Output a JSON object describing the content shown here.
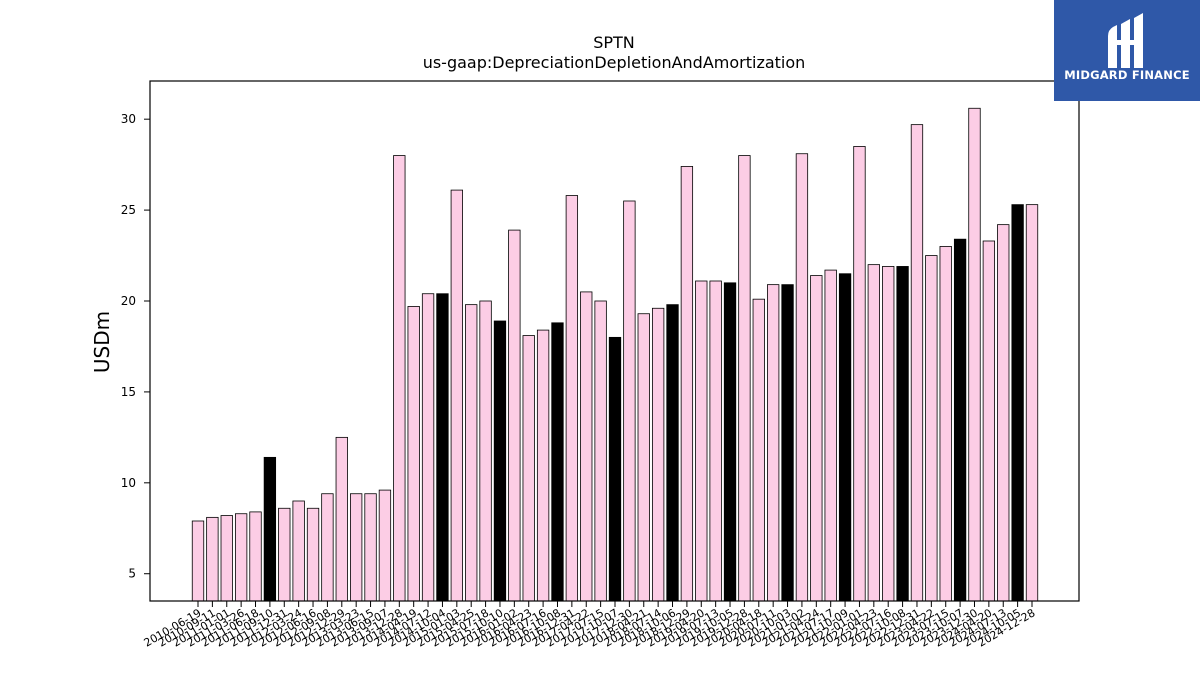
{
  "logo": {
    "text": "MIDGARD FINANCE",
    "background": "#2f58a8"
  },
  "chart_data": {
    "type": "bar",
    "title": "SPTN",
    "subtitle": "us-gaap:DepreciationDepletionAndAmortization",
    "xlabel": "",
    "ylabel": "USDm",
    "ylim": [
      3.5,
      32.1
    ],
    "yticks": [
      5,
      10,
      15,
      20,
      25,
      30
    ],
    "grid": false,
    "colors": {
      "quarter": "#fccde5",
      "annual": "#000000",
      "edge": "#000000"
    },
    "categories": [
      "2010-06-19",
      "2010-09-11",
      "2011-01-01",
      "2011-03-26",
      "2011-06-18",
      "2011-09-10",
      "2011-12-31",
      "2012-03-24",
      "2012-06-16",
      "2012-09-08",
      "2012-12-29",
      "2013-03-23",
      "2013-06-15",
      "2013-09-07",
      "2013-12-28",
      "2014-04-19",
      "2014-07-12",
      "2014-10-04",
      "2015-01-03",
      "2015-04-25",
      "2015-07-18",
      "2015-10-10",
      "2016-01-02",
      "2016-04-23",
      "2016-07-16",
      "2016-10-08",
      "2016-12-31",
      "2017-04-22",
      "2017-07-15",
      "2017-10-07",
      "2017-12-30",
      "2018-04-21",
      "2018-07-14",
      "2018-10-06",
      "2018-12-29",
      "2019-04-20",
      "2019-07-13",
      "2019-10-05",
      "2019-12-28",
      "2020-04-18",
      "2020-07-11",
      "2020-10-03",
      "2021-01-02",
      "2021-04-24",
      "2021-07-17",
      "2021-10-09",
      "2022-01-01",
      "2022-04-23",
      "2022-07-16",
      "2022-10-08",
      "2022-12-31",
      "2023-04-22",
      "2023-07-15",
      "2023-10-07",
      "2023-12-30",
      "2024-04-20",
      "2024-07-13",
      "2024-10-05",
      "2024-12-28"
    ],
    "tick_labels": [
      "2010-06-19",
      "2010-09-11",
      "2011-01-01",
      "2011-03-26",
      "2011-06-18",
      "2011-09-10",
      "2011-12-31",
      "2012-03-24",
      "2012-06-16",
      "2012-09-08",
      "2012-12-29",
      "2013-03-23",
      "2013-06-15",
      "2013-09-07",
      "2013-12-28",
      "2014-04-19",
      "2014-07-12",
      "2014-10-04",
      "2015-01-03",
      "2015-04-25",
      "2015-07-18",
      "2015-10-10",
      "2016-01-02",
      "2016-04-23",
      "2016-07-16",
      "2016-10-08",
      "2016-12-31",
      "2017-04-22",
      "2017-07-15",
      "2017-10-07",
      "2017-12-30",
      "2018-04-21",
      "2018-07-14",
      "2018-10-06",
      "2018-12-29",
      "2019-04-20",
      "2019-07-13",
      "2019-10-05",
      "2019-12-28",
      "2020-04-18",
      "2020-07-11",
      "2020-10-03",
      "2021-01-02",
      "2021-04-24",
      "2021-07-17",
      "2021-10-09",
      "2022-01-01",
      "2022-04-23",
      "2022-07-16",
      "2022-10-08",
      "2022-12-31",
      "2023-04-22",
      "2023-07-15",
      "2023-10-07",
      "2023-12-30",
      "2024-04-20",
      "2024-07-13",
      "2024-10-05",
      "2024-12-28"
    ],
    "values": [
      7.9,
      8.1,
      8.2,
      8.3,
      8.4,
      11.4,
      8.6,
      9.0,
      8.6,
      9.4,
      12.5,
      9.4,
      9.4,
      9.6,
      28.0,
      19.7,
      20.4,
      20.4,
      26.1,
      19.8,
      20.0,
      18.9,
      23.9,
      18.1,
      18.4,
      18.8,
      25.8,
      20.5,
      20.0,
      18.0,
      25.5,
      19.3,
      19.6,
      19.8,
      27.4,
      21.1,
      21.1,
      21.0,
      28.0,
      20.1,
      20.9,
      20.9,
      28.1,
      21.4,
      21.7,
      21.5,
      28.5,
      22.0,
      21.9,
      21.9,
      29.7,
      22.5,
      23.0,
      23.4,
      30.6,
      23.3,
      24.2,
      25.3,
      25.3
    ],
    "annual": [
      false,
      false,
      false,
      false,
      false,
      true,
      false,
      false,
      false,
      false,
      false,
      false,
      false,
      false,
      false,
      false,
      false,
      true,
      false,
      false,
      false,
      true,
      false,
      false,
      false,
      true,
      false,
      false,
      false,
      true,
      false,
      false,
      false,
      true,
      false,
      false,
      false,
      true,
      false,
      false,
      false,
      true,
      false,
      false,
      false,
      true,
      false,
      false,
      false,
      true,
      false,
      false,
      false,
      true,
      false,
      false,
      false,
      true,
      false
    ]
  }
}
